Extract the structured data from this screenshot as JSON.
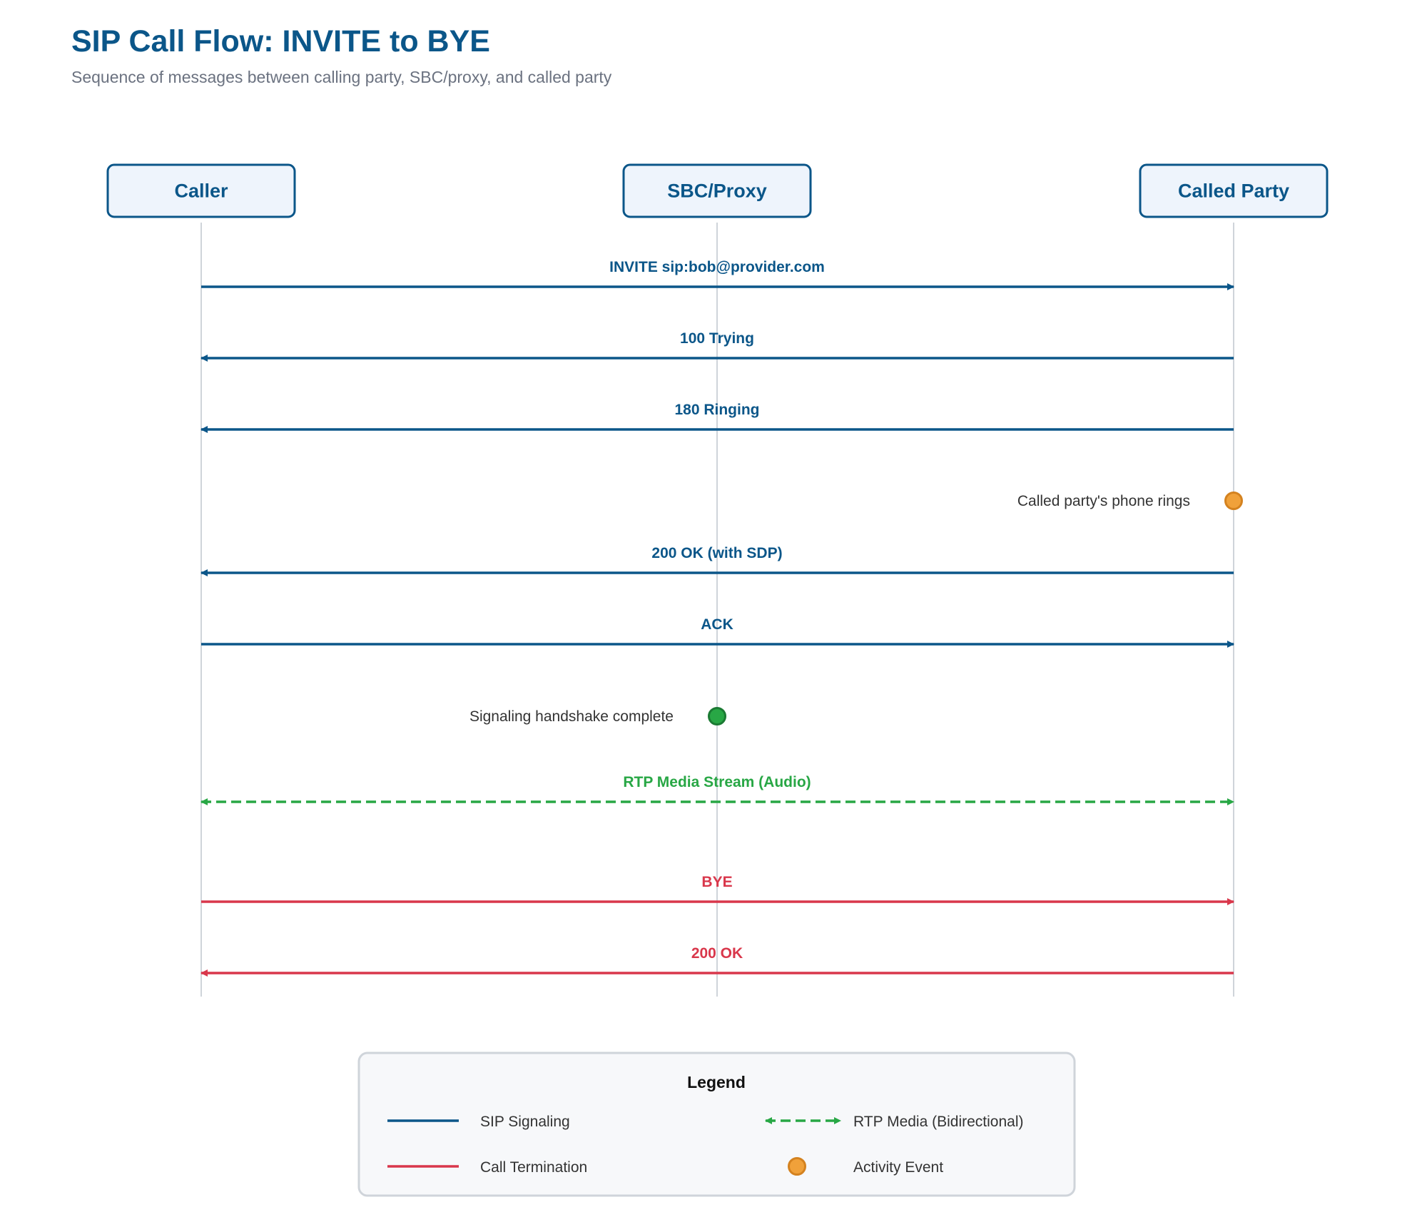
{
  "header": {
    "title": "SIP Call Flow: INVITE to BYE",
    "subtitle": "Sequence of messages between calling party, SBC/proxy, and called party"
  },
  "colors": {
    "signaling": "#0b5689",
    "media": "#28a745",
    "termination": "#d9374b",
    "event_orange": "#f0a13a",
    "event_orange_stroke": "#d4821f",
    "event_green": "#28a745",
    "event_green_stroke": "#1b7a33",
    "subtitle": "#6b7280",
    "lifeline": "#cfd4da",
    "actor_fill": "#eef4fc",
    "legend_fill": "#f7f8fa",
    "legend_stroke": "#cfd4da",
    "text": "#333333"
  },
  "actors": [
    {
      "id": "caller",
      "label": "Caller"
    },
    {
      "id": "sbc",
      "label": "SBC/Proxy"
    },
    {
      "id": "called",
      "label": "Called Party"
    }
  ],
  "steps": [
    {
      "kind": "message",
      "label": "INVITE sip:bob@provider.com",
      "from": "caller",
      "to": "called",
      "style": "signaling"
    },
    {
      "kind": "message",
      "label": "100 Trying",
      "from": "called",
      "to": "caller",
      "style": "signaling"
    },
    {
      "kind": "message",
      "label": "180 Ringing",
      "from": "called",
      "to": "caller",
      "style": "signaling"
    },
    {
      "kind": "event",
      "label": "Called party's phone rings",
      "at": "called",
      "style": "orange"
    },
    {
      "kind": "message",
      "label": "200 OK (with SDP)",
      "from": "called",
      "to": "caller",
      "style": "signaling"
    },
    {
      "kind": "message",
      "label": "ACK",
      "from": "caller",
      "to": "called",
      "style": "signaling"
    },
    {
      "kind": "event",
      "label": "Signaling handshake complete",
      "at": "sbc",
      "style": "green"
    },
    {
      "kind": "media",
      "label": "RTP Media Stream (Audio)",
      "from": "caller",
      "to": "called",
      "style": "media"
    },
    {
      "kind": "message",
      "label": "BYE",
      "from": "caller",
      "to": "called",
      "style": "termination"
    },
    {
      "kind": "message",
      "label": "200 OK",
      "from": "called",
      "to": "caller",
      "style": "termination"
    }
  ],
  "legend": {
    "title": "Legend",
    "items": [
      {
        "label": "SIP Signaling",
        "symbol": "line-signaling"
      },
      {
        "label": "RTP Media (Bidirectional)",
        "symbol": "line-media"
      },
      {
        "label": "Call Termination",
        "symbol": "line-termination"
      },
      {
        "label": "Activity Event",
        "symbol": "dot-event"
      }
    ]
  }
}
